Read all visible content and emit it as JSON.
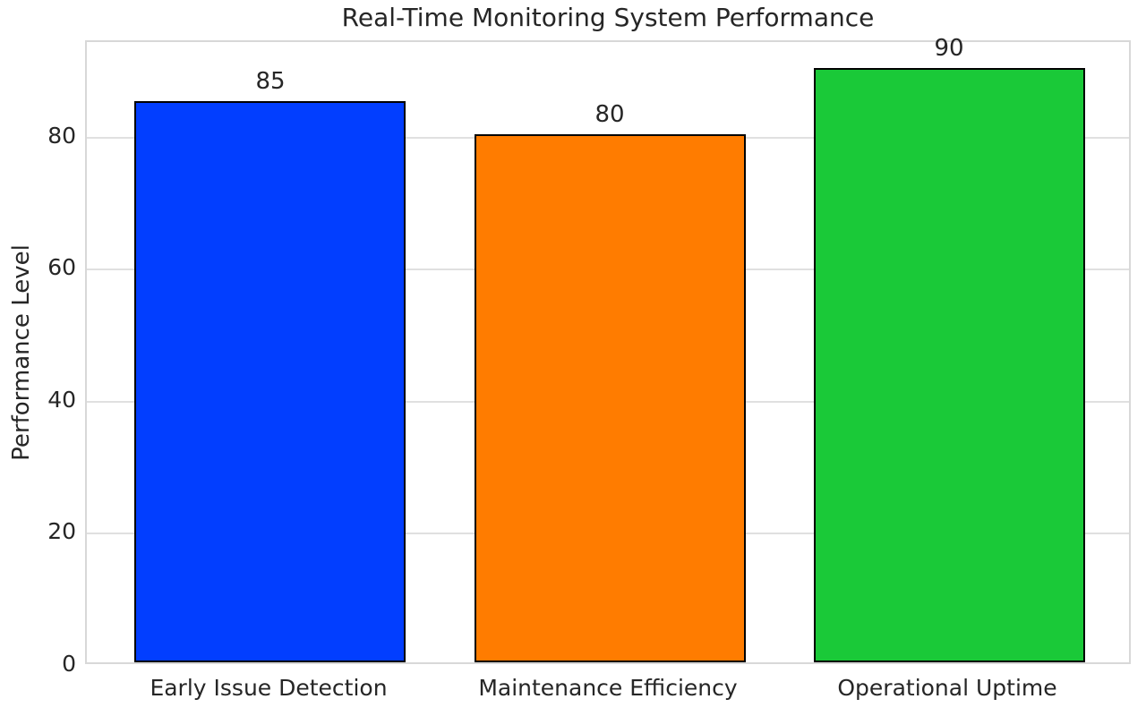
{
  "chart_data": {
    "type": "bar",
    "title": "Real-Time Monitoring System Performance",
    "ylabel": "Performance Level",
    "xlabel": "",
    "categories": [
      "Early Issue Detection",
      "Maintenance Efficiency",
      "Operational Uptime"
    ],
    "values": [
      85,
      80,
      90
    ],
    "value_labels": [
      "85",
      "80",
      "90"
    ],
    "bar_colors": [
      "#023eff",
      "#ff7c00",
      "#1ac938"
    ],
    "bar_edge_color": "#000000",
    "yticks": [
      0,
      20,
      40,
      60,
      80
    ],
    "ytick_labels": [
      "0",
      "20",
      "40",
      "60",
      "80"
    ],
    "ylim": [
      0,
      94.5
    ],
    "grid": "horizontal-only",
    "grid_color": "#e0e0e0",
    "spine_color": "#d8d8d8",
    "text_color": "#262626",
    "background_color": "#ffffff",
    "legend_position": "none"
  }
}
